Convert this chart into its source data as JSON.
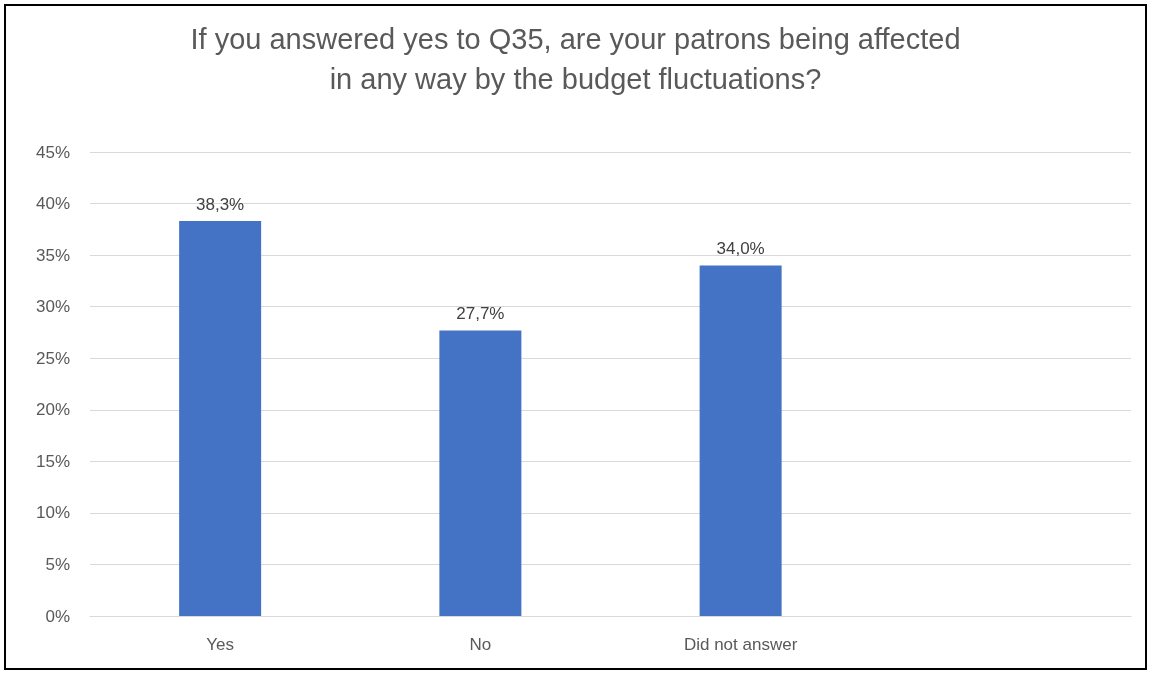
{
  "chart_data": {
    "type": "bar",
    "title": "If you answered yes to Q35, are your patrons being affected\nin any way by the budget fluctuations?",
    "categories": [
      "Yes",
      "No",
      "Did not answer",
      null
    ],
    "values": [
      38.3,
      27.7,
      34.0,
      null
    ],
    "value_labels": [
      "38,3%",
      "27,7%",
      "34,0%",
      null
    ],
    "color": "#4472c4",
    "ylim": [
      0,
      45
    ],
    "yticks": [
      {
        "value": 0,
        "label": "0%"
      },
      {
        "value": 5,
        "label": "5%"
      },
      {
        "value": 10,
        "label": "10%"
      },
      {
        "value": 15,
        "label": "15%"
      },
      {
        "value": 20,
        "label": "20%"
      },
      {
        "value": 25,
        "label": "25%"
      },
      {
        "value": 30,
        "label": "30%"
      },
      {
        "value": 35,
        "label": "35%"
      },
      {
        "value": 40,
        "label": "40%"
      },
      {
        "value": 45,
        "label": "45%"
      }
    ],
    "grid": "y"
  }
}
